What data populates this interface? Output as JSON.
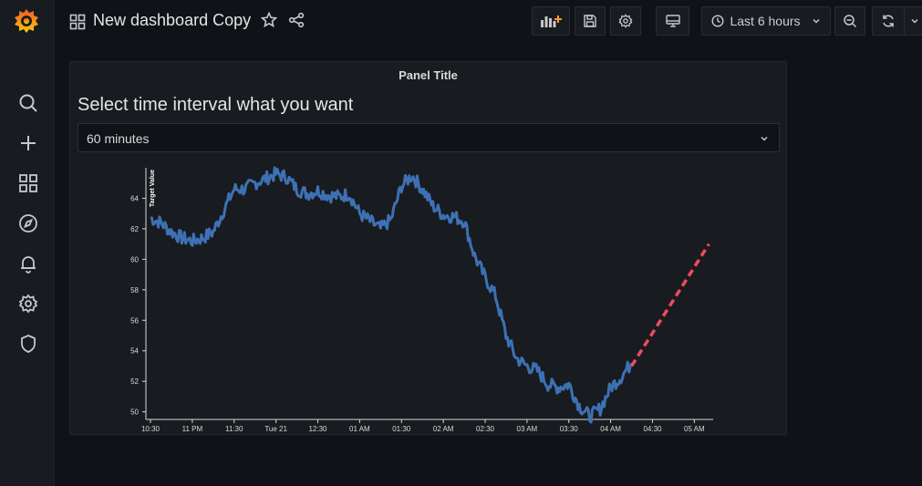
{
  "header": {
    "title": "New dashboard Copy",
    "time_range": "Last 6 hours"
  },
  "sidebar": {
    "items": [
      "search",
      "create",
      "dashboards",
      "explore",
      "alerting",
      "configuration",
      "server-admin"
    ]
  },
  "panel": {
    "title": "Panel Title",
    "heading": "Select time interval what you want",
    "select_value": "60 minutes"
  },
  "colors": {
    "series": "#3d71b4",
    "forecast": "#f2495c",
    "background": "#111217",
    "panel": "#181b1f"
  },
  "chart_data": {
    "type": "line",
    "ylabel": "Target Value",
    "ylim": [
      49.5,
      66
    ],
    "yticks": [
      50,
      52,
      54,
      56,
      58,
      60,
      62,
      64
    ],
    "xticks": [
      "10:30",
      "11 PM",
      "11:30",
      "Tue 21",
      "12:30",
      "01 AM",
      "01:30",
      "02 AM",
      "02:30",
      "03 AM",
      "03:30",
      "04 AM",
      "04:30",
      "05 AM"
    ],
    "series": [
      {
        "x": [
          0,
          0.25,
          0.5,
          0.75,
          1,
          1.25,
          1.5,
          1.75,
          2,
          2.25,
          2.5,
          2.75,
          3,
          3.25,
          3.5,
          3.75,
          4,
          4.25,
          4.5,
          4.75,
          5,
          5.25,
          5.5,
          5.75,
          6,
          6.25,
          6.5,
          6.75,
          7,
          7.25,
          7.5,
          7.75,
          8,
          8.25,
          8.5,
          8.75,
          9,
          9.25,
          9.5,
          9.75,
          10,
          10.25,
          10.5,
          10.75,
          11,
          11.25,
          11.5
        ],
        "values": [
          62.7,
          62.4,
          61.8,
          61.4,
          61.2,
          61.4,
          61.8,
          63.2,
          64.6,
          64.6,
          65.0,
          65.3,
          65.6,
          65.4,
          64.6,
          64.3,
          64.5,
          64.2,
          64.1,
          64.3,
          63.0,
          62.5,
          62.0,
          62.6,
          64.8,
          65.5,
          64.6,
          63.5,
          62.9,
          62.8,
          62.5,
          60.2,
          58.8,
          57.6,
          55.0,
          53.5,
          53.0,
          52.7,
          51.8,
          51.6,
          51.8,
          50.4,
          49.7,
          50.2,
          51.6,
          52.3,
          53.2
        ]
      },
      {
        "x": [
          11.5,
          13.35
        ],
        "values": [
          53.0,
          61.0
        ]
      }
    ]
  }
}
